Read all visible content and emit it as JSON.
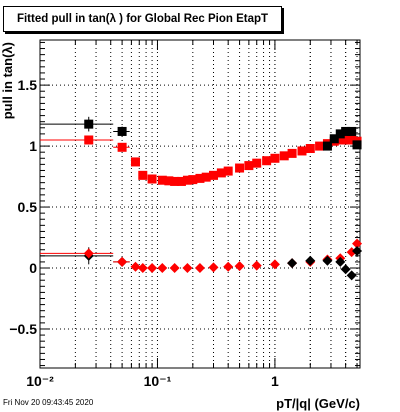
{
  "chart_data": {
    "type": "scatter",
    "title": "Fitted pull in tan(λ ) for Global Rec Pion EtapT",
    "xlabel": "pT/|q| (GeV/c)",
    "ylabel": "pull in tan(λ)",
    "xscale": "log",
    "xlim": [
      0.01,
      5.3
    ],
    "ylim": [
      -0.82,
      1.87
    ],
    "grid": true,
    "legend": "none",
    "x_ticks": [
      {
        "value": 0.01,
        "label": "10⁻²"
      },
      {
        "value": 0.1,
        "label": "10⁻¹"
      },
      {
        "value": 1,
        "label": "1"
      }
    ],
    "y_ticks": [
      {
        "value": -0.5,
        "label": "−0.5"
      },
      {
        "value": 0,
        "label": "0"
      },
      {
        "value": 0.5,
        "label": "0.5"
      },
      {
        "value": 1,
        "label": "1"
      },
      {
        "value": 1.5,
        "label": "1.5"
      }
    ],
    "series": [
      {
        "color": "#000000",
        "marker": "square",
        "points": [
          {
            "x": 0.026,
            "y": 1.18,
            "xerr": [
              0.01,
              0.042
            ],
            "yerr": 0.06
          },
          {
            "x": 0.05,
            "y": 1.12,
            "xerr": [
              0.042,
              0.058
            ],
            "yerr": 0.04
          }
        ]
      },
      {
        "color": "#000000",
        "marker": "diamond",
        "points": [
          {
            "x": 0.026,
            "y": 0.1,
            "xerr": [
              0.01,
              0.042
            ],
            "yerr": 0.07
          },
          {
            "x": 0.05,
            "y": 0.05,
            "xerr": [
              0.042,
              0.058
            ],
            "yerr": 0.03
          }
        ]
      },
      {
        "color": "#ff0000",
        "marker": "square",
        "points": [
          {
            "x": 0.026,
            "y": 1.05,
            "xerr": [
              0.01,
              0.042
            ],
            "yerr": 0.03
          },
          {
            "x": 0.05,
            "y": 0.99,
            "xerr": [
              0.042,
              0.058
            ],
            "yerr": 0.03
          },
          {
            "x": 0.065,
            "y": 0.87
          },
          {
            "x": 0.075,
            "y": 0.76
          },
          {
            "x": 0.09,
            "y": 0.73
          },
          {
            "x": 0.11,
            "y": 0.72
          },
          {
            "x": 0.125,
            "y": 0.715
          },
          {
            "x": 0.14,
            "y": 0.71
          },
          {
            "x": 0.16,
            "y": 0.71
          },
          {
            "x": 0.18,
            "y": 0.72
          },
          {
            "x": 0.2,
            "y": 0.725
          },
          {
            "x": 0.23,
            "y": 0.735
          },
          {
            "x": 0.26,
            "y": 0.745
          },
          {
            "x": 0.3,
            "y": 0.76
          },
          {
            "x": 0.35,
            "y": 0.78
          },
          {
            "x": 0.4,
            "y": 0.795
          },
          {
            "x": 0.5,
            "y": 0.82
          },
          {
            "x": 0.6,
            "y": 0.84
          },
          {
            "x": 0.7,
            "y": 0.86
          },
          {
            "x": 0.85,
            "y": 0.88
          },
          {
            "x": 1.0,
            "y": 0.9
          },
          {
            "x": 1.2,
            "y": 0.92
          },
          {
            "x": 1.4,
            "y": 0.94
          },
          {
            "x": 1.7,
            "y": 0.96
          },
          {
            "x": 2.0,
            "y": 0.98
          },
          {
            "x": 2.4,
            "y": 1.0
          },
          {
            "x": 2.8,
            "y": 1.02
          },
          {
            "x": 3.2,
            "y": 1.04
          },
          {
            "x": 3.6,
            "y": 1.05
          },
          {
            "x": 4.0,
            "y": 1.05
          },
          {
            "x": 4.5,
            "y": 1.05
          },
          {
            "x": 5.0,
            "y": 1.04
          }
        ]
      },
      {
        "color": "#ff0000",
        "marker": "diamond",
        "points": [
          {
            "x": 0.026,
            "y": 0.12,
            "xerr": [
              0.01,
              0.042
            ],
            "yerr": 0.04
          },
          {
            "x": 0.05,
            "y": 0.05,
            "xerr": [
              0.042,
              0.058
            ],
            "yerr": 0.02
          },
          {
            "x": 0.065,
            "y": 0.01
          },
          {
            "x": 0.075,
            "y": 0.0
          },
          {
            "x": 0.09,
            "y": 0.0
          },
          {
            "x": 0.11,
            "y": 0.0
          },
          {
            "x": 0.14,
            "y": 0.0
          },
          {
            "x": 0.18,
            "y": 0.0
          },
          {
            "x": 0.23,
            "y": 0.0
          },
          {
            "x": 0.3,
            "y": 0.005
          },
          {
            "x": 0.4,
            "y": 0.01
          },
          {
            "x": 0.5,
            "y": 0.015
          },
          {
            "x": 0.7,
            "y": 0.02
          },
          {
            "x": 1.0,
            "y": 0.03
          },
          {
            "x": 1.4,
            "y": 0.04
          },
          {
            "x": 2.0,
            "y": 0.05
          },
          {
            "x": 2.8,
            "y": 0.07
          },
          {
            "x": 3.6,
            "y": 0.08
          },
          {
            "x": 4.5,
            "y": 0.13
          },
          {
            "x": 5.0,
            "y": 0.2
          }
        ]
      },
      {
        "color": "#000000",
        "marker": "square",
        "points": [
          {
            "x": 2.8,
            "y": 1.0
          },
          {
            "x": 3.2,
            "y": 1.06
          },
          {
            "x": 3.6,
            "y": 1.1
          },
          {
            "x": 4.0,
            "y": 1.12
          },
          {
            "x": 4.5,
            "y": 1.12
          },
          {
            "x": 5.0,
            "y": 1.01
          }
        ]
      },
      {
        "color": "#000000",
        "marker": "diamond",
        "points": [
          {
            "x": 1.4,
            "y": 0.04
          },
          {
            "x": 2.0,
            "y": 0.06
          },
          {
            "x": 2.8,
            "y": 0.06
          },
          {
            "x": 3.6,
            "y": 0.05
          },
          {
            "x": 4.0,
            "y": -0.01
          },
          {
            "x": 4.5,
            "y": -0.06
          },
          {
            "x": 5.0,
            "y": 0.14
          }
        ]
      }
    ]
  },
  "footer": {
    "timestamp": "Fri Nov 20 09:43:45 2020"
  }
}
